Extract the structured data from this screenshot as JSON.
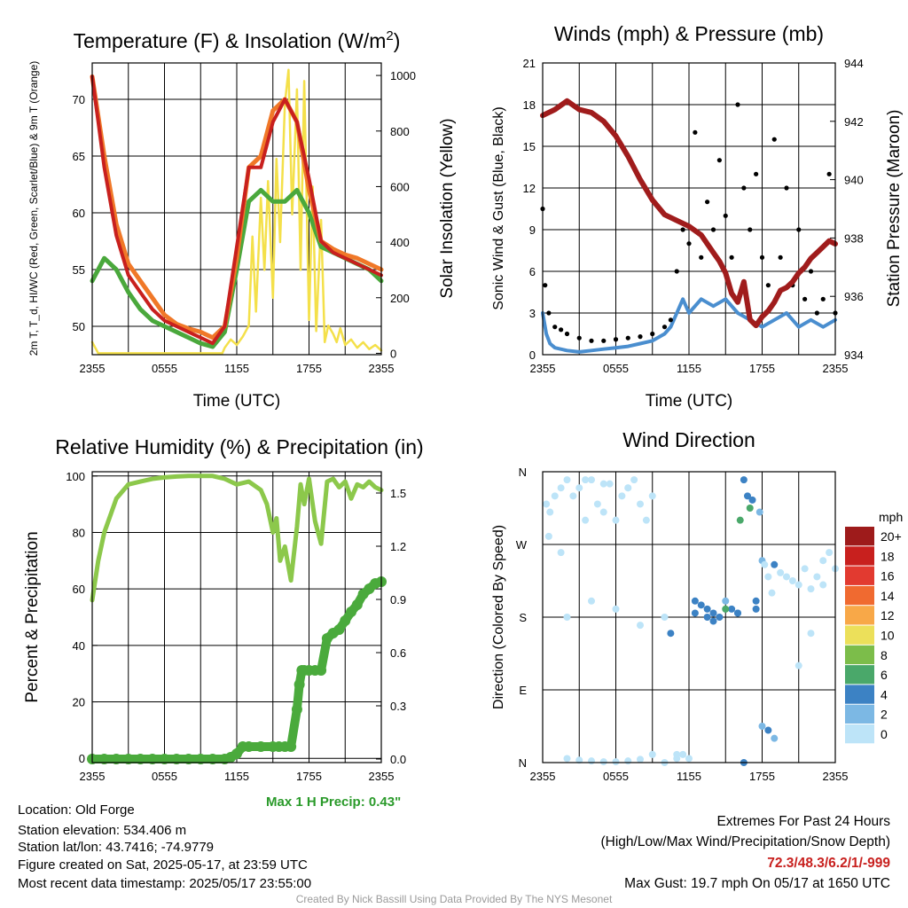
{
  "chart_data": [
    {
      "type": "line",
      "title": "Temperature (F) & Insolation (W/m²)",
      "xlabel": "Time (UTC)",
      "ylabel": "2m T, T_d, HI/WC (Red, Green, Scarlet/Blue) & 9m T (Orange)",
      "ylabel_right": "Solar Insolation (Yellow)",
      "x_ticks": [
        "2355",
        "0555",
        "1155",
        "1755",
        "2355"
      ],
      "ylim": [
        47.5,
        73.2
      ],
      "y_ticks": [
        50,
        55,
        60,
        65,
        70
      ],
      "ylim_right": [
        -5,
        1045
      ],
      "y_ticks_right": [
        0,
        200,
        400,
        600,
        800,
        1000
      ],
      "grid": true,
      "series": [
        {
          "name": "2m T",
          "color": "#c8201e",
          "x": [
            0,
            1,
            2,
            3,
            4,
            5,
            6,
            7,
            8,
            9,
            10,
            11,
            12,
            13,
            14,
            15,
            16,
            17,
            18,
            19,
            20,
            21,
            22,
            23,
            24
          ],
          "values": [
            72,
            64,
            58,
            54.5,
            53,
            51.5,
            50.5,
            50,
            49.5,
            49,
            48.5,
            50,
            57,
            64,
            64,
            68,
            70,
            68,
            63,
            57.5,
            56.5,
            56,
            55.5,
            55,
            54.5
          ]
        },
        {
          "name": "9m T",
          "color": "#f07828",
          "x": [
            0,
            1,
            2,
            3,
            4,
            5,
            6,
            7,
            8,
            9,
            10,
            11,
            12,
            13,
            14,
            15,
            16,
            17,
            18,
            19,
            20,
            21,
            22,
            23,
            24
          ],
          "values": [
            72,
            65,
            59,
            55.5,
            54,
            52.5,
            51,
            50.2,
            49.8,
            49.5,
            49,
            50,
            56,
            64,
            65,
            69,
            70,
            68,
            62,
            57.5,
            56.8,
            56.3,
            56,
            55.5,
            55
          ]
        },
        {
          "name": "T_d",
          "color": "#4aa83c",
          "x": [
            0,
            1,
            2,
            3,
            4,
            5,
            6,
            7,
            8,
            9,
            10,
            11,
            12,
            13,
            14,
            15,
            16,
            17,
            18,
            19,
            20,
            21,
            22,
            23,
            24
          ],
          "values": [
            54,
            56,
            55,
            53,
            51.5,
            50.5,
            50,
            49.5,
            49,
            48.5,
            48.2,
            49.5,
            55,
            61,
            62,
            61,
            61,
            62,
            60,
            57,
            56.5,
            56,
            55.5,
            55,
            54
          ]
        },
        {
          "name": "Solar Insolation",
          "color": "#f4e04a",
          "axis": "right",
          "x": [
            0,
            0.5,
            1,
            2,
            3,
            4,
            5,
            6,
            7,
            8,
            9,
            10,
            10.8,
            11,
            11.5,
            12,
            12.5,
            13,
            13.3,
            13.6,
            14,
            14.3,
            14.6,
            15,
            15.3,
            15.6,
            16,
            16.3,
            16.6,
            17,
            17.3,
            17.6,
            18,
            18.3,
            18.6,
            19,
            19.3,
            19.6,
            20,
            20.3,
            20.6,
            21,
            21.5,
            22,
            22.5,
            23,
            23.5,
            24
          ],
          "values": [
            40,
            0,
            0,
            0,
            0,
            0,
            0,
            0,
            0,
            0,
            0,
            0,
            0,
            20,
            50,
            30,
            60,
            100,
            420,
            150,
            560,
            300,
            620,
            200,
            700,
            400,
            900,
            1020,
            500,
            950,
            300,
            980,
            120,
            600,
            80,
            480,
            40,
            100,
            70,
            40,
            90,
            30,
            50,
            20,
            40,
            15,
            30,
            10
          ]
        }
      ]
    },
    {
      "type": "line",
      "title": "Winds (mph) & Pressure (mb)",
      "xlabel": "Time (UTC)",
      "ylabel": "Sonic Wind & Gust (Blue, Black)",
      "ylabel_right": "Station Pressure (Maroon)",
      "x_ticks": [
        "2355",
        "0555",
        "1155",
        "1755",
        "2355"
      ],
      "ylim": [
        0,
        21
      ],
      "y_ticks": [
        0,
        3,
        6,
        9,
        12,
        15,
        18,
        21
      ],
      "ylim_right": [
        934,
        944
      ],
      "y_ticks_right": [
        934,
        936,
        938,
        940,
        942,
        944
      ],
      "grid": true,
      "series": [
        {
          "name": "Sonic Wind",
          "color": "#4a8ecf",
          "x": [
            0,
            0.3,
            0.6,
            1,
            2,
            3,
            4,
            5,
            6,
            7,
            8,
            9,
            10,
            10.5,
            11,
            11.5,
            12,
            13,
            14,
            15,
            16,
            17,
            18,
            19,
            20,
            21,
            22,
            23,
            24
          ],
          "values": [
            3,
            1.5,
            0.8,
            0.5,
            0.3,
            0.2,
            0.3,
            0.4,
            0.5,
            0.6,
            0.8,
            1,
            1.5,
            2,
            3,
            4,
            3,
            4,
            3.5,
            4,
            3,
            2.5,
            2,
            2.5,
            3,
            2,
            2.5,
            2,
            2.5
          ]
        },
        {
          "name": "Gust",
          "color": "#000000",
          "marker": "dot",
          "x": [
            0,
            0.2,
            0.5,
            1,
            1.5,
            2,
            3,
            4,
            5,
            6,
            7,
            8,
            9,
            10,
            10.5,
            11,
            11.5,
            12,
            12.5,
            13,
            13.5,
            14,
            14.5,
            15,
            15.5,
            16,
            16.5,
            17,
            17.5,
            18,
            18.5,
            19,
            19.5,
            20,
            20.5,
            21,
            21.5,
            22,
            22.5,
            23,
            23.5,
            24
          ],
          "values": [
            10.5,
            5,
            3,
            2,
            1.8,
            1.5,
            1.2,
            1,
            1,
            1.1,
            1.2,
            1.3,
            1.5,
            2,
            2.5,
            6,
            9,
            8,
            16,
            7,
            11,
            9,
            14,
            10,
            7,
            18,
            12,
            9,
            13,
            7,
            5,
            15.5,
            7,
            12,
            5,
            9,
            4,
            6,
            3,
            4,
            13,
            3
          ]
        },
        {
          "name": "Station Pressure",
          "color": "#a01c1c",
          "axis": "right",
          "x": [
            0,
            1,
            2,
            3,
            4,
            5,
            6,
            7,
            8,
            9,
            10,
            11,
            12,
            13,
            14,
            14.5,
            15,
            15.5,
            16,
            16.5,
            17,
            17.5,
            18,
            18.5,
            19,
            19.5,
            20,
            20.5,
            21,
            21.5,
            22,
            22.5,
            23,
            23.5,
            24
          ],
          "values": [
            942.2,
            942.4,
            942.7,
            942.4,
            942.3,
            942.0,
            941.5,
            940.8,
            940.0,
            939.3,
            938.8,
            938.6,
            938.4,
            938.1,
            937.5,
            937.2,
            936.8,
            936.1,
            935.8,
            936.5,
            935.2,
            935.0,
            935.3,
            935.5,
            935.8,
            936.2,
            936.3,
            936.5,
            936.8,
            937.0,
            937.3,
            937.5,
            937.7,
            937.9,
            937.8
          ]
        }
      ]
    },
    {
      "type": "line",
      "title": "Relative Humidity (%) & Precipitation (in)",
      "ylabel": "Percent & Precipitation",
      "x_ticks": [
        "2355",
        "0555",
        "1155",
        "1755",
        "2355"
      ],
      "ylim": [
        -1.5,
        101.5
      ],
      "y_ticks": [
        0,
        20,
        40,
        60,
        80,
        100
      ],
      "ylim_right": [
        -0.02,
        1.62
      ],
      "y_ticks_right": [
        0.0,
        0.3,
        0.6,
        0.9,
        1.2,
        1.5
      ],
      "grid": true,
      "annotation": "Max 1 H Precip: 0.43\"",
      "series": [
        {
          "name": "Relative Humidity",
          "color": "#8cc84b",
          "x": [
            0,
            0.5,
            1,
            2,
            3,
            4,
            5,
            6,
            7,
            8,
            9,
            10,
            11,
            12,
            13,
            14,
            14.5,
            15,
            15.3,
            15.6,
            16,
            16.5,
            17,
            17.3,
            17.6,
            18,
            18.5,
            19,
            19.5,
            20,
            20.5,
            21,
            21.5,
            22,
            22.5,
            23,
            23.5,
            24
          ],
          "values": [
            56,
            70,
            80,
            92,
            97,
            98,
            99,
            99.5,
            99.8,
            100,
            100,
            100,
            99,
            97,
            98,
            95,
            90,
            80,
            85,
            70,
            75,
            63,
            82,
            97,
            90,
            99,
            84,
            76,
            98,
            99,
            96,
            98,
            92,
            97,
            96,
            98,
            96,
            95
          ]
        },
        {
          "name": "Precipitation",
          "color": "#4aaa3c",
          "marker": "dot",
          "axis": "right",
          "x": [
            0,
            1,
            2,
            3,
            4,
            5,
            6,
            7,
            8,
            9,
            10,
            11,
            11.5,
            12,
            12.5,
            13,
            14,
            15,
            15.5,
            16,
            16.5,
            17,
            17.2,
            17.4,
            17.6,
            18,
            18.5,
            19,
            19.5,
            20,
            20.5,
            21,
            21.5,
            22,
            22.5,
            23,
            23.5,
            24
          ],
          "values": [
            0,
            0,
            0,
            0,
            0,
            0,
            0,
            0,
            0,
            0,
            0,
            0,
            0.01,
            0.03,
            0.07,
            0.07,
            0.07,
            0.07,
            0.07,
            0.07,
            0.07,
            0.28,
            0.42,
            0.5,
            0.5,
            0.5,
            0.5,
            0.5,
            0.68,
            0.71,
            0.73,
            0.78,
            0.83,
            0.87,
            0.93,
            0.96,
            0.99,
            1.0
          ]
        }
      ]
    },
    {
      "type": "scatter",
      "title": "Wind Direction",
      "ylabel": "Direction (Colored By Speed)",
      "x_ticks": [
        "2355",
        "0555",
        "1155",
        "1755",
        "2355"
      ],
      "y_ticks": [
        "N",
        "E",
        "S",
        "W",
        "N"
      ],
      "ylim": [
        0,
        360
      ],
      "grid": true,
      "legend": {
        "placement": "right",
        "title": "mph",
        "labels": [
          "20+",
          "18",
          "16",
          "14",
          "12",
          "10",
          "8",
          "6",
          "4",
          "2",
          "0"
        ],
        "colors": [
          "#9e1b1b",
          "#c8201e",
          "#e23a30",
          "#f06a30",
          "#f8a848",
          "#ece05a",
          "#7cbd4a",
          "#4aa86a",
          "#3c82c4",
          "#7cb8e4",
          "#bde4f8"
        ]
      },
      "series": [
        {
          "name": "Direction",
          "x": [
            0.3,
            0.6,
            1,
            1.5,
            2,
            2.5,
            3,
            3.5,
            4,
            4.5,
            5,
            5.5,
            6,
            6.5,
            7,
            7.5,
            8,
            8.5,
            9,
            0.5,
            1.5,
            3.5,
            5,
            7,
            9,
            2,
            4,
            6,
            8,
            10,
            10.5,
            11,
            11.5,
            12,
            12.5,
            13,
            13.5,
            14,
            14.5,
            15,
            15.5,
            16,
            16.2,
            16.5,
            16.8,
            17,
            17.2,
            17.5,
            17.8,
            18,
            18.2,
            18.5,
            18.8,
            19,
            19.5,
            20,
            20.5,
            21,
            21.5,
            22,
            22.5,
            23,
            23.5,
            24,
            12.5,
            13.5,
            14,
            15,
            16,
            17.5,
            18,
            19,
            21,
            22,
            23,
            2,
            3,
            4,
            5,
            6,
            7,
            8,
            10,
            11,
            16.5,
            18.5
          ],
          "values": [
            320,
            310,
            330,
            340,
            350,
            330,
            340,
            300,
            350,
            320,
            310,
            345,
            300,
            330,
            340,
            350,
            320,
            300,
            330,
            280,
            260,
            350,
            345,
            340,
            10,
            180,
            200,
            190,
            170,
            180,
            160,
            5,
            10,
            5,
            200,
            195,
            190,
            185,
            180,
            200,
            190,
            185,
            300,
            350,
            330,
            315,
            325,
            200,
            310,
            250,
            245,
            230,
            210,
            245,
            235,
            230,
            225,
            220,
            240,
            215,
            230,
            250,
            260,
            240,
            185,
            180,
            175,
            190,
            185,
            190,
            45,
            30,
            120,
            160,
            220,
            5,
            3,
            2,
            1,
            1,
            2,
            4,
            0,
            10,
            0,
            40
          ],
          "speeds": [
            1,
            1,
            0.5,
            0.5,
            0.5,
            0.5,
            1,
            0.5,
            0.5,
            1,
            0.5,
            0.5,
            1,
            0.5,
            1,
            0.5,
            0.5,
            1,
            0.5,
            0.5,
            1,
            0.5,
            0.5,
            1,
            0.5,
            1,
            0.5,
            1,
            1,
            0.5,
            4,
            1,
            1,
            1,
            4,
            4,
            4,
            4,
            4,
            3,
            4,
            4,
            7,
            4,
            4,
            7,
            4,
            4,
            3,
            3,
            1,
            1,
            1,
            4,
            1,
            1,
            0.5,
            1,
            1,
            0.5,
            1,
            1,
            0.5,
            1,
            4,
            4,
            4,
            7,
            4,
            4,
            3,
            3,
            1,
            0.5,
            0.5,
            0.5,
            1,
            1,
            0.5,
            1,
            1,
            1,
            1,
            1,
            4,
            4
          ]
        }
      ]
    }
  ],
  "info": {
    "location": "Location: Old Forge",
    "elevation": "Station elevation: 534.406 m",
    "latlon": "Station lat/lon: 43.7416; -74.9779",
    "created": "Figure created on Sat, 2025-05-17, at 23:59 UTC",
    "recent": "Most recent data timestamp: 2025/05/17 23:55:00"
  },
  "extremes": {
    "heading": "Extremes For Past 24 Hours",
    "subheading": "(High/Low/Max Wind/Precipitation/Snow Depth)",
    "values": "72.3/48.3/6.2/1/-999",
    "gust": "Max Gust: 19.7 mph On 05/17 at 1650 UTC",
    "values_color": "#c8201e"
  },
  "precip_note": "Max 1 H Precip: 0.43\"",
  "precip_note_color": "#2a9a2a",
  "credit": "Created By Nick Bassill Using Data Provided By The NYS Mesonet"
}
